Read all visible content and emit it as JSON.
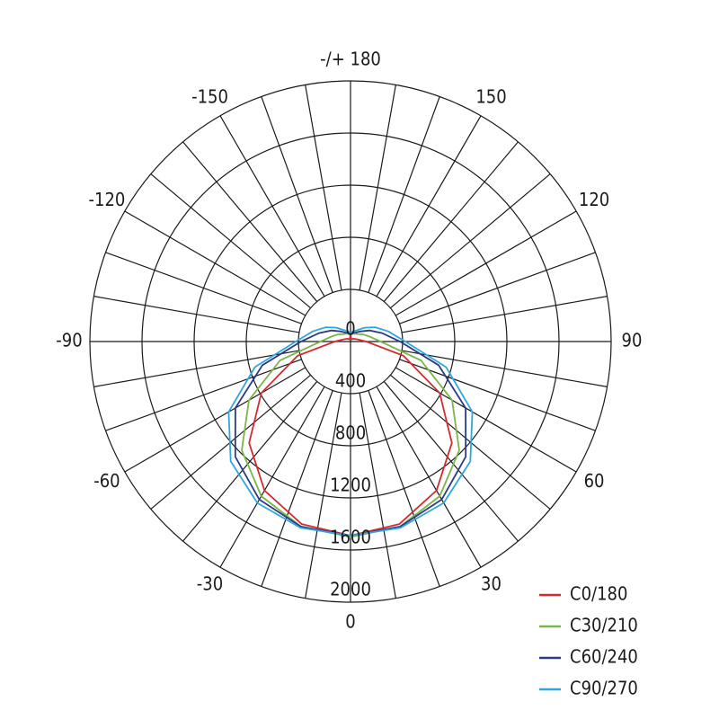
{
  "chart_data": {
    "type": "polar",
    "rlim": [
      0,
      2000
    ],
    "rticks": [
      0,
      400,
      800,
      1200,
      1600,
      2000
    ],
    "thetaticks": [
      0,
      30,
      60,
      90,
      120,
      150,
      {
        "value": 180,
        "label": "-/+ 180"
      },
      -150,
      -120,
      -90,
      -60,
      -30
    ],
    "thetagrid": [
      -170,
      -160,
      -150,
      -140,
      -130,
      -120,
      -110,
      -100,
      -90,
      -80,
      -70,
      -60,
      -50,
      -40,
      -30,
      -20,
      -10,
      0,
      10,
      20,
      30,
      40,
      50,
      60,
      70,
      80,
      90,
      100,
      110,
      120,
      130,
      140,
      150,
      160,
      170,
      180
    ],
    "theta": [
      -180,
      -165,
      -150,
      -135,
      -120,
      -105,
      -90,
      -75,
      -60,
      -45,
      -30,
      -15,
      0,
      15,
      30,
      45,
      60,
      75,
      90,
      105,
      120,
      135,
      150,
      165,
      180
    ],
    "legend": "lower right",
    "series": [
      {
        "name": "C0/180",
        "color": "#d42a2f",
        "values": [
          60,
          20,
          20,
          30,
          40,
          60,
          120,
          420,
          790,
          1100,
          1320,
          1450,
          1490,
          1450,
          1320,
          1100,
          790,
          420,
          120,
          60,
          40,
          30,
          20,
          20,
          60
        ]
      },
      {
        "name": "C30/210",
        "color": "#7ab648",
        "values": [
          60,
          60,
          70,
          80,
          110,
          150,
          230,
          560,
          900,
          1180,
          1370,
          1470,
          1500,
          1470,
          1370,
          1180,
          900,
          560,
          230,
          150,
          110,
          80,
          70,
          60,
          60
        ]
      },
      {
        "name": "C60/240",
        "color": "#2b3a86",
        "values": [
          60,
          70,
          80,
          110,
          170,
          250,
          380,
          700,
          1020,
          1250,
          1400,
          1470,
          1490,
          1470,
          1400,
          1250,
          1020,
          700,
          380,
          250,
          170,
          110,
          80,
          70,
          60
        ]
      },
      {
        "name": "C90/270",
        "color": "#2fa6df",
        "values": [
          70,
          80,
          100,
          150,
          220,
          300,
          420,
          760,
          1080,
          1300,
          1430,
          1480,
          1490,
          1480,
          1430,
          1300,
          1080,
          760,
          420,
          300,
          220,
          150,
          100,
          80,
          70
        ]
      }
    ]
  }
}
